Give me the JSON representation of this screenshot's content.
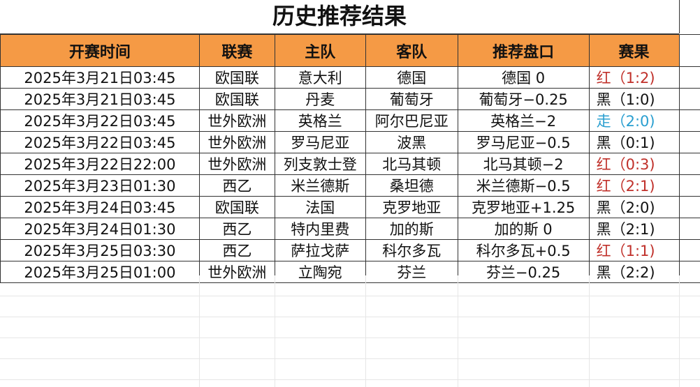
{
  "title": "历史推荐结果",
  "headers": [
    "开赛时间",
    "联赛",
    "主队",
    "客队",
    "推荐盘口",
    "赛果"
  ],
  "colors": {
    "header_bg": "#F59A45",
    "red": "#C0302A",
    "blue": "#2A9FD0",
    "black": "#111111"
  },
  "rows": [
    {
      "time": "2025年3月21日03:45",
      "league": "欧国联",
      "home": "意大利",
      "away": "德国",
      "pick": "德国 0",
      "result": "红（1:2)",
      "result_type": "red"
    },
    {
      "time": "2025年3月21日03:45",
      "league": "欧国联",
      "home": "丹麦",
      "away": "葡萄牙",
      "pick": "葡萄牙−0.25",
      "result": "黑（1:0)",
      "result_type": "black"
    },
    {
      "time": "2025年3月22日03:45",
      "league": "世外欧洲",
      "home": "英格兰",
      "away": "阿尔巴尼亚",
      "pick": "英格兰−2",
      "result": "走（2:0)",
      "result_type": "blue"
    },
    {
      "time": "2025年3月22日03:45",
      "league": "世外欧洲",
      "home": "罗马尼亚",
      "away": "波黑",
      "pick": "罗马尼亚−0.5",
      "result": "黑（0:1)",
      "result_type": "black"
    },
    {
      "time": "2025年3月22日22:00",
      "league": "世外欧洲",
      "home": "列支敦士登",
      "away": "北马其顿",
      "pick": "北马其顿−2",
      "result": "红（0:3)",
      "result_type": "red"
    },
    {
      "time": "2025年3月23日01:30",
      "league": "西乙",
      "home": "米兰德斯",
      "away": "桑坦德",
      "pick": "米兰德斯−0.5",
      "result": "红（2:1)",
      "result_type": "red"
    },
    {
      "time": "2025年3月24日03:45",
      "league": "欧国联",
      "home": "法国",
      "away": "克罗地亚",
      "pick": "克罗地亚+1.25",
      "result": "黑（2:0)",
      "result_type": "black"
    },
    {
      "time": "2025年3月24日01:30",
      "league": "西乙",
      "home": "特内里费",
      "away": "加的斯",
      "pick": "加的斯 0",
      "result": "黑（2:1)",
      "result_type": "black"
    },
    {
      "time": "2025年3月25日03:30",
      "league": "西乙",
      "home": "萨拉戈萨",
      "away": "科尔多瓦",
      "pick": "科尔多瓦+0.5",
      "result": "红（1:1)",
      "result_type": "red"
    },
    {
      "time": "2025年3月25日01:00",
      "league": "世外欧洲",
      "home": "立陶宛",
      "away": "芬兰",
      "pick": "芬兰−0.25",
      "result": "黑（2:2)",
      "result_type": "black"
    }
  ]
}
